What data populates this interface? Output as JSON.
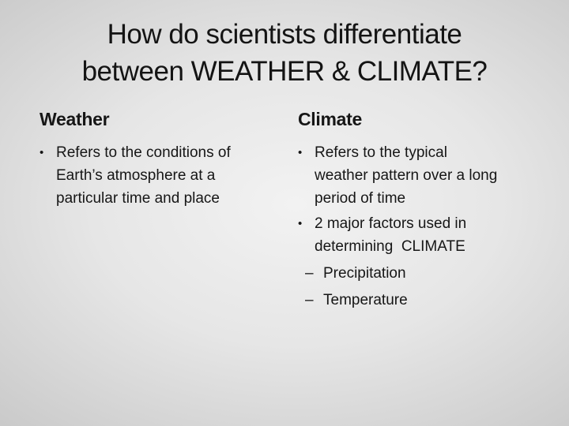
{
  "slide": {
    "title_lines": [
      "How do scientists differentiate",
      "between WEATHER & CLIMATE?"
    ],
    "bullet_marker": "•",
    "sub_bullet_marker": "–",
    "columns": [
      {
        "header": "Weather",
        "bullets": [
          {
            "lines": [
              "Refers to the conditions of",
              "Earth’s atmosphere at a",
              "particular time and place"
            ],
            "sub": []
          }
        ]
      },
      {
        "header": "Climate",
        "bullets": [
          {
            "lines": [
              "Refers to the typical",
              "weather pattern over a long",
              "period of time"
            ],
            "sub": []
          },
          {
            "lines": [
              "2 major factors used in",
              "determining  CLIMATE"
            ],
            "sub": [
              "Precipitation",
              "Temperature"
            ]
          }
        ]
      }
    ],
    "colors": {
      "text": "#161616",
      "background_center": "#f2f2f2",
      "background_edge": "#979797"
    }
  }
}
